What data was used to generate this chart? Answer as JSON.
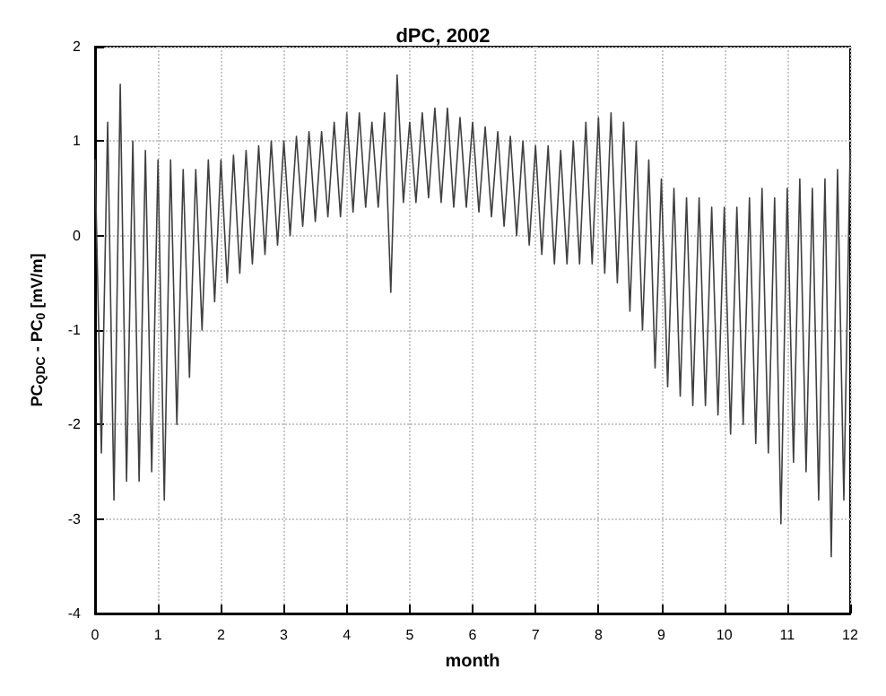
{
  "chart_data": {
    "type": "line",
    "title": "dPC, 2002",
    "xlabel": "month",
    "ylabel": "PC$_{QDC}$ - PC$_{0}$ [mV/m]",
    "x": [
      0,
      0.1,
      0.2,
      0.3,
      0.4,
      0.5,
      0.6,
      0.7,
      0.8,
      0.9,
      1,
      1.1,
      1.2,
      1.3,
      1.4,
      1.5,
      1.6,
      1.7,
      1.8,
      1.9,
      2,
      2.1,
      2.2,
      2.3,
      2.4,
      2.5,
      2.6,
      2.7,
      2.8,
      2.9,
      3,
      3.1,
      3.2,
      3.3,
      3.4,
      3.5,
      3.6,
      3.7,
      3.8,
      3.9,
      4,
      4.1,
      4.2,
      4.3,
      4.4,
      4.5,
      4.6,
      4.7,
      4.8,
      4.9,
      5,
      5.1,
      5.2,
      5.3,
      5.4,
      5.5,
      5.6,
      5.7,
      5.8,
      5.9,
      6,
      6.1,
      6.2,
      6.3,
      6.4,
      6.5,
      6.6,
      6.7,
      6.8,
      6.9,
      7,
      7.1,
      7.2,
      7.3,
      7.4,
      7.5,
      7.6,
      7.7,
      7.8,
      7.9,
      8,
      8.1,
      8.2,
      8.3,
      8.4,
      8.5,
      8.6,
      8.7,
      8.8,
      8.9,
      9,
      9.1,
      9.2,
      9.3,
      9.4,
      9.5,
      9.6,
      9.7,
      9.8,
      9.9,
      10,
      10.1,
      10.2,
      10.3,
      10.4,
      10.5,
      10.6,
      10.7,
      10.8,
      10.9,
      11,
      11.1,
      11.2,
      11.3,
      11.4,
      11.5,
      11.6,
      11.7,
      11.8,
      11.9,
      12
    ],
    "series": [
      {
        "color": "#404040",
        "values": [
          0.8,
          -2.3,
          1.2,
          -2.8,
          1.6,
          -2.6,
          1.0,
          -2.6,
          0.9,
          -2.5,
          0.8,
          -2.8,
          0.8,
          -2.0,
          0.7,
          -1.5,
          0.7,
          -1.0,
          0.8,
          -0.7,
          0.8,
          -0.5,
          0.85,
          -0.4,
          0.9,
          -0.3,
          0.95,
          -0.2,
          1.0,
          -0.1,
          1.0,
          0.0,
          1.05,
          0.1,
          1.1,
          0.15,
          1.1,
          0.2,
          1.2,
          0.2,
          1.3,
          0.25,
          1.3,
          0.3,
          1.2,
          0.3,
          1.3,
          -0.6,
          1.7,
          0.35,
          1.2,
          0.35,
          1.3,
          0.4,
          1.35,
          0.35,
          1.35,
          0.3,
          1.25,
          0.3,
          1.2,
          0.25,
          1.15,
          0.2,
          1.1,
          0.1,
          1.05,
          0.0,
          1.0,
          -0.1,
          0.95,
          -0.2,
          0.95,
          -0.3,
          0.9,
          -0.3,
          1.0,
          -0.3,
          1.2,
          -0.3,
          1.25,
          -0.4,
          1.3,
          -0.5,
          1.2,
          -0.8,
          1.0,
          -1.0,
          0.8,
          -1.4,
          0.6,
          -1.6,
          0.5,
          -1.7,
          0.4,
          -1.8,
          0.4,
          -1.8,
          0.3,
          -1.9,
          0.3,
          -2.1,
          0.3,
          -2.0,
          0.4,
          -2.2,
          0.5,
          -2.3,
          0.4,
          -3.05,
          0.5,
          -2.4,
          0.6,
          -2.5,
          0.5,
          -2.8,
          0.6,
          -3.4,
          0.7,
          -2.8,
          0.9
        ]
      }
    ],
    "xlim": [
      0,
      12
    ],
    "xticks": [
      0,
      1,
      2,
      3,
      4,
      5,
      6,
      7,
      8,
      9,
      10,
      11,
      12
    ],
    "ylim": [
      -4,
      2
    ],
    "yticks": [
      -4,
      -3,
      -2,
      -1,
      0,
      1,
      2
    ],
    "grid": true,
    "marker": "none",
    "line_style": "solid"
  }
}
